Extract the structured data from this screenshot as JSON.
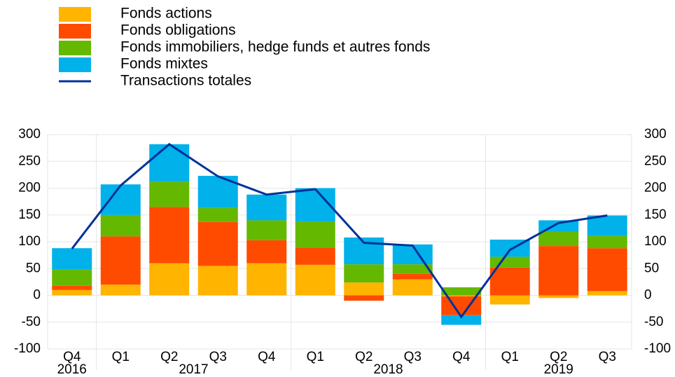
{
  "chart_data": {
    "type": "stacked-bar-line",
    "categories": [
      "Q4",
      "Q1",
      "Q2",
      "Q3",
      "Q4",
      "Q1",
      "Q2",
      "Q3",
      "Q4",
      "Q1",
      "Q2",
      "Q3"
    ],
    "groups": [
      {
        "label": "2016",
        "size": 1
      },
      {
        "label": "2017",
        "size": 4
      },
      {
        "label": "2018",
        "size": 4
      },
      {
        "label": "2019",
        "size": 3
      }
    ],
    "series": [
      {
        "name": "Fonds actions",
        "color": "#ffb400",
        "values": [
          10,
          20,
          60,
          55,
          60,
          57,
          24,
          30,
          -2,
          -17,
          -5,
          8
        ]
      },
      {
        "name": "Fonds obligations",
        "color": "#ff4b00",
        "values": [
          8,
          90,
          105,
          82,
          43,
          32,
          -10,
          10,
          -35,
          52,
          92,
          80
        ]
      },
      {
        "name": "Fonds immobiliers, hedge funds et autres fonds",
        "color": "#65b800",
        "values": [
          30,
          40,
          47,
          26,
          37,
          49,
          34,
          18,
          15,
          20,
          27,
          23
        ]
      },
      {
        "name": "Fonds mixtes",
        "color": "#00b1ea",
        "values": [
          40,
          57,
          70,
          60,
          48,
          62,
          50,
          37,
          -18,
          32,
          21,
          38
        ]
      }
    ],
    "line": {
      "name": "Transactions totales",
      "color": "#003299",
      "values": [
        87,
        205,
        282,
        222,
        188,
        198,
        98,
        93,
        -40,
        85,
        135,
        149
      ]
    },
    "ylim": [
      -100,
      300
    ],
    "yticks": [
      -100,
      -50,
      0,
      50,
      100,
      150,
      200,
      250,
      300
    ],
    "y2lim": [
      -100,
      300
    ],
    "y2ticks": [
      -100,
      -50,
      0,
      50,
      100,
      150,
      200,
      250,
      300
    ],
    "grid": true
  }
}
